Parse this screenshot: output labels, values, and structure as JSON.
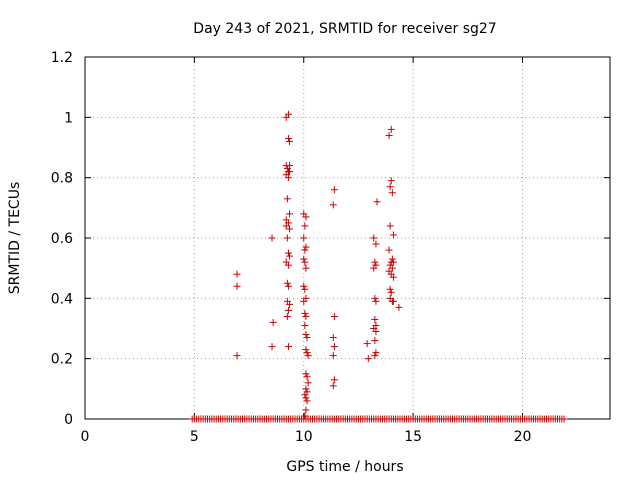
{
  "chart_data": {
    "type": "scatter",
    "title": "Day 243 of 2021, SRMTID for receiver sg27",
    "xlabel": "GPS time / hours",
    "ylabel": "SRMTID / TECUs",
    "xlim": [
      0,
      24
    ],
    "ylim": [
      0,
      1.2
    ],
    "xticks": [
      0,
      5,
      10,
      15,
      20
    ],
    "yticks": [
      0,
      0.2,
      0.4,
      0.6,
      0.8,
      1,
      1.2
    ],
    "xtick_labels": [
      "0",
      "5",
      "10",
      "15",
      "20"
    ],
    "ytick_labels": [
      "0",
      "0.2",
      "0.4",
      "0.6",
      "0.8",
      "1",
      "1.2"
    ],
    "grid": true,
    "marker": "+",
    "color": "#cc0000",
    "baseline": {
      "y": 0,
      "x_start": 4.9,
      "x_end": 21.9,
      "step": 0.1
    },
    "series": [
      {
        "name": "sg27",
        "points": [
          [
            6.95,
            0.48
          ],
          [
            6.95,
            0.44
          ],
          [
            6.95,
            0.21
          ],
          [
            8.55,
            0.6
          ],
          [
            8.6,
            0.32
          ],
          [
            8.55,
            0.24
          ],
          [
            9.2,
            1.0
          ],
          [
            9.3,
            1.01
          ],
          [
            9.3,
            0.93
          ],
          [
            9.35,
            0.92
          ],
          [
            9.2,
            0.84
          ],
          [
            9.25,
            0.83
          ],
          [
            9.35,
            0.84
          ],
          [
            9.3,
            0.82
          ],
          [
            9.2,
            0.81
          ],
          [
            9.3,
            0.8
          ],
          [
            9.35,
            0.82
          ],
          [
            9.25,
            0.73
          ],
          [
            9.35,
            0.68
          ],
          [
            9.2,
            0.66
          ],
          [
            9.3,
            0.65
          ],
          [
            9.35,
            0.63
          ],
          [
            9.2,
            0.64
          ],
          [
            9.25,
            0.6
          ],
          [
            9.3,
            0.55
          ],
          [
            9.35,
            0.54
          ],
          [
            9.2,
            0.52
          ],
          [
            9.3,
            0.51
          ],
          [
            9.25,
            0.45
          ],
          [
            9.3,
            0.44
          ],
          [
            9.25,
            0.39
          ],
          [
            9.35,
            0.38
          ],
          [
            9.3,
            0.36
          ],
          [
            9.25,
            0.34
          ],
          [
            9.3,
            0.24
          ],
          [
            10.0,
            0.68
          ],
          [
            10.1,
            0.67
          ],
          [
            10.05,
            0.64
          ],
          [
            10.0,
            0.6
          ],
          [
            10.1,
            0.57
          ],
          [
            10.05,
            0.56
          ],
          [
            10.0,
            0.53
          ],
          [
            10.05,
            0.52
          ],
          [
            10.1,
            0.5
          ],
          [
            10.0,
            0.44
          ],
          [
            10.05,
            0.43
          ],
          [
            10.1,
            0.4
          ],
          [
            10.0,
            0.39
          ],
          [
            10.05,
            0.35
          ],
          [
            10.1,
            0.34
          ],
          [
            10.05,
            0.31
          ],
          [
            10.1,
            0.28
          ],
          [
            10.15,
            0.27
          ],
          [
            10.1,
            0.23
          ],
          [
            10.15,
            0.22
          ],
          [
            10.2,
            0.21
          ],
          [
            10.1,
            0.15
          ],
          [
            10.15,
            0.14
          ],
          [
            10.2,
            0.12
          ],
          [
            10.1,
            0.1
          ],
          [
            10.15,
            0.09
          ],
          [
            10.05,
            0.08
          ],
          [
            10.1,
            0.07
          ],
          [
            10.15,
            0.06
          ],
          [
            10.1,
            0.03
          ],
          [
            10.05,
            0.01
          ],
          [
            11.4,
            0.76
          ],
          [
            11.35,
            0.71
          ],
          [
            11.4,
            0.34
          ],
          [
            11.35,
            0.27
          ],
          [
            11.4,
            0.24
          ],
          [
            11.35,
            0.21
          ],
          [
            11.4,
            0.13
          ],
          [
            11.35,
            0.11
          ],
          [
            12.9,
            0.25
          ],
          [
            12.95,
            0.2
          ],
          [
            13.2,
            0.6
          ],
          [
            13.3,
            0.58
          ],
          [
            13.25,
            0.52
          ],
          [
            13.3,
            0.51
          ],
          [
            13.2,
            0.5
          ],
          [
            13.25,
            0.4
          ],
          [
            13.3,
            0.39
          ],
          [
            13.25,
            0.33
          ],
          [
            13.3,
            0.31
          ],
          [
            13.2,
            0.3
          ],
          [
            13.3,
            0.29
          ],
          [
            13.25,
            0.26
          ],
          [
            13.3,
            0.22
          ],
          [
            13.25,
            0.21
          ],
          [
            13.35,
            0.72
          ],
          [
            13.9,
            0.94
          ],
          [
            14.0,
            0.96
          ],
          [
            14.0,
            0.79
          ],
          [
            13.95,
            0.77
          ],
          [
            14.05,
            0.75
          ],
          [
            13.95,
            0.64
          ],
          [
            14.1,
            0.61
          ],
          [
            13.9,
            0.56
          ],
          [
            14.05,
            0.53
          ],
          [
            14.0,
            0.52
          ],
          [
            14.1,
            0.52
          ],
          [
            13.95,
            0.51
          ],
          [
            14.05,
            0.5
          ],
          [
            13.9,
            0.49
          ],
          [
            14.0,
            0.48
          ],
          [
            14.1,
            0.47
          ],
          [
            13.95,
            0.43
          ],
          [
            14.0,
            0.42
          ],
          [
            13.95,
            0.4
          ],
          [
            14.05,
            0.39
          ],
          [
            14.1,
            0.39
          ],
          [
            14.35,
            0.37
          ]
        ]
      }
    ]
  }
}
